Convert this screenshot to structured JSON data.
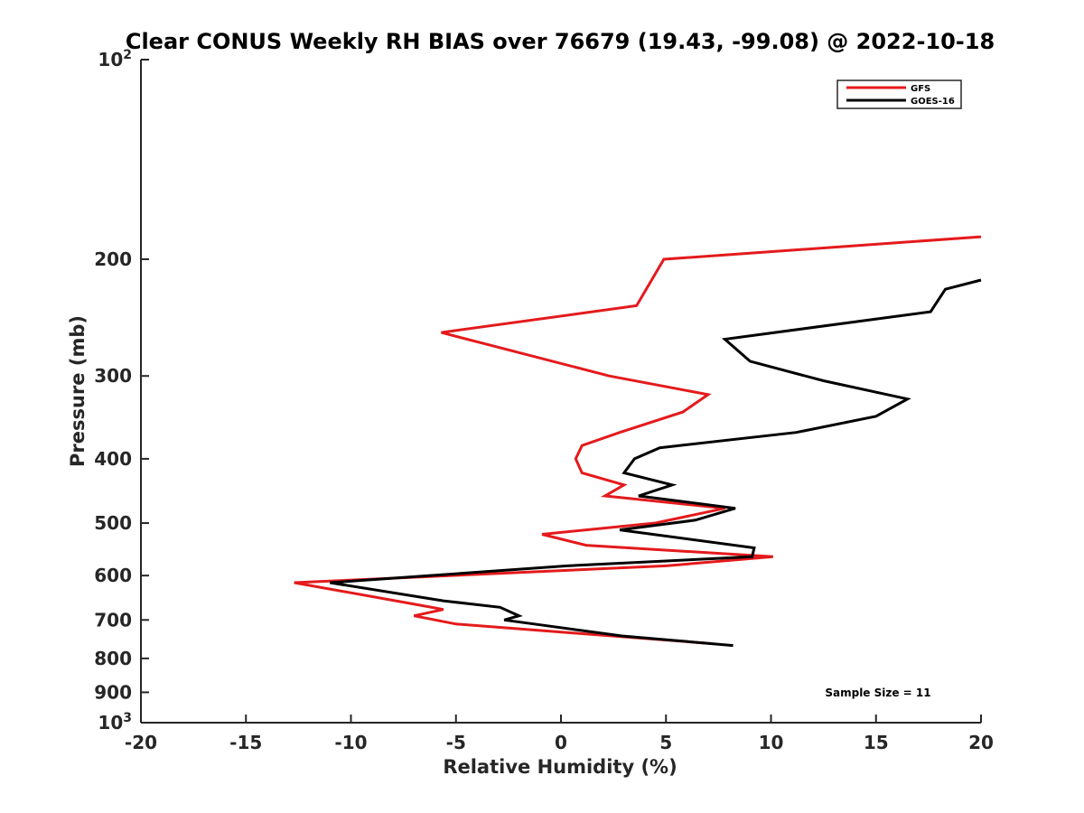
{
  "chart_data": {
    "type": "line",
    "title": "Clear CONUS Weekly RH BIAS over 76679 (19.43, -99.08) @ 2022-10-18",
    "xlabel": "Relative Humidity (%)",
    "ylabel": "Pressure (mb)",
    "xlim": [
      -20,
      20
    ],
    "ylim": [
      100,
      1000
    ],
    "y_scale": "log",
    "y_reversed": true,
    "grid": false,
    "legend_position": "top-right",
    "x_ticks": [
      "-20",
      "-15",
      "-10",
      "-5",
      "0",
      "5",
      "10",
      "15",
      "20"
    ],
    "y_ticks": [
      {
        "value": 100,
        "label": "10",
        "sup": "2"
      },
      {
        "value": 200,
        "label": "200"
      },
      {
        "value": 300,
        "label": "300"
      },
      {
        "value": 400,
        "label": "400"
      },
      {
        "value": 500,
        "label": "500"
      },
      {
        "value": 600,
        "label": "600"
      },
      {
        "value": 700,
        "label": "700"
      },
      {
        "value": 800,
        "label": "800"
      },
      {
        "value": 900,
        "label": "900"
      },
      {
        "value": 1000,
        "label": "10",
        "sup": "3"
      }
    ],
    "annotation": "Sample Size = 11",
    "series": [
      {
        "name": "GFS",
        "color": "#e41a1c",
        "points": [
          [
            20.0,
            185
          ],
          [
            4.9,
            200
          ],
          [
            3.6,
            235
          ],
          [
            -5.7,
            258
          ],
          [
            2.3,
            300
          ],
          [
            7.0,
            320
          ],
          [
            5.8,
            340
          ],
          [
            2.8,
            365
          ],
          [
            1.0,
            382
          ],
          [
            0.7,
            400
          ],
          [
            1.0,
            420
          ],
          [
            3.0,
            438
          ],
          [
            2.1,
            455
          ],
          [
            7.8,
            475
          ],
          [
            4.5,
            500
          ],
          [
            -0.9,
            520
          ],
          [
            1.2,
            540
          ],
          [
            10.1,
            562
          ],
          [
            5.0,
            580
          ],
          [
            -12.7,
            615
          ],
          [
            -6.7,
            665
          ],
          [
            -5.6,
            675
          ],
          [
            -7.0,
            690
          ],
          [
            -5.0,
            710
          ],
          [
            7.2,
            760
          ]
        ]
      },
      {
        "name": "GOES-16",
        "color": "#000000",
        "points": [
          [
            20.0,
            215
          ],
          [
            18.3,
            222
          ],
          [
            17.6,
            240
          ],
          [
            7.8,
            264
          ],
          [
            9.0,
            285
          ],
          [
            12.5,
            305
          ],
          [
            16.5,
            325
          ],
          [
            15.0,
            345
          ],
          [
            11.2,
            365
          ],
          [
            4.7,
            385
          ],
          [
            3.5,
            400
          ],
          [
            3.0,
            420
          ],
          [
            5.3,
            438
          ],
          [
            3.7,
            455
          ],
          [
            8.3,
            475
          ],
          [
            6.4,
            495
          ],
          [
            2.8,
            512
          ],
          [
            9.2,
            545
          ],
          [
            9.1,
            562
          ],
          [
            0.3,
            580
          ],
          [
            -11.0,
            615
          ],
          [
            -5.6,
            655
          ],
          [
            -2.9,
            670
          ],
          [
            -2.0,
            690
          ],
          [
            -2.7,
            700
          ],
          [
            -1.0,
            712
          ],
          [
            2.9,
            740
          ],
          [
            8.2,
            765
          ]
        ]
      }
    ]
  }
}
